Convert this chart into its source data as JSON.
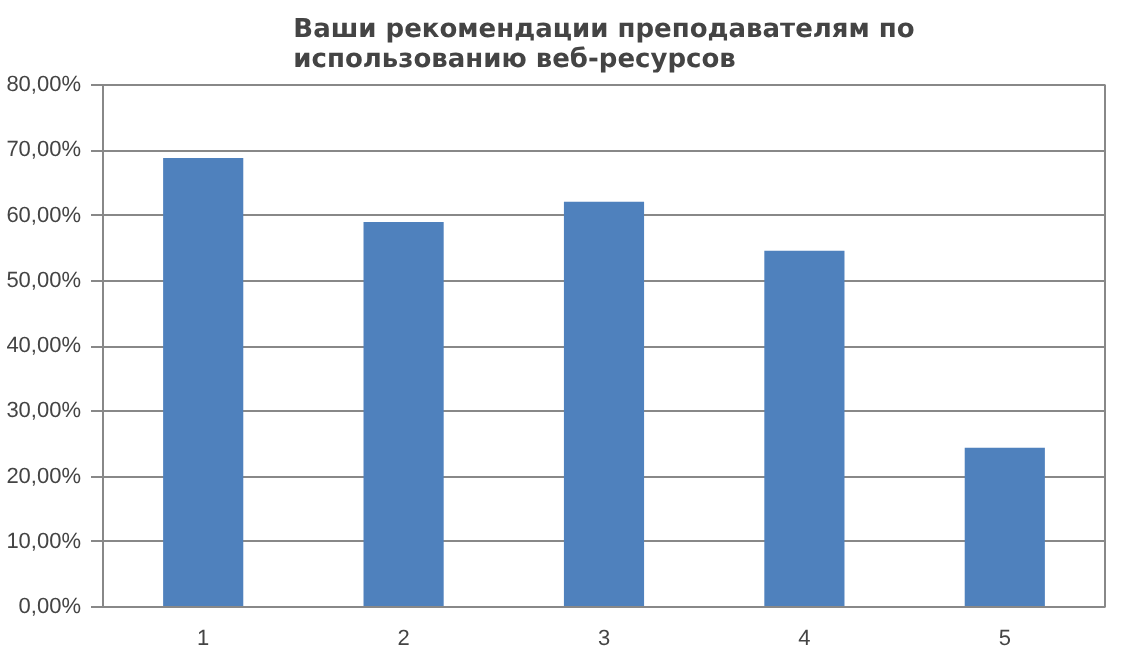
{
  "chart_data": {
    "type": "bar",
    "title": "Ваши рекомендации преподавателям по использованию веб-ресурсов",
    "categories": [
      "1",
      "2",
      "3",
      "4",
      "5"
    ],
    "values": [
      68.8,
      59,
      62.1,
      54.6,
      24.4
    ],
    "color": "#4f81bd",
    "ylim": [
      0,
      80
    ],
    "yticks": [
      {
        "value": 0,
        "label": "0,00%"
      },
      {
        "value": 10,
        "label": "10,00%"
      },
      {
        "value": 20,
        "label": "20,00%"
      },
      {
        "value": 30,
        "label": "30,00%"
      },
      {
        "value": 40,
        "label": "40,00%"
      },
      {
        "value": 50,
        "label": "50,00%"
      },
      {
        "value": 60,
        "label": "60,00%"
      },
      {
        "value": 70,
        "label": "70,00%"
      },
      {
        "value": 80,
        "label": "80,00%"
      }
    ],
    "grid": "y",
    "legend": false
  }
}
